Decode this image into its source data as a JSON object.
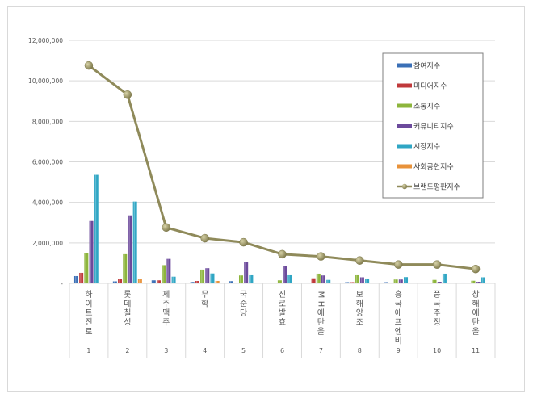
{
  "chart_data": {
    "type": "bar",
    "title": "",
    "xlabel": "",
    "ylabel": "",
    "ylim": [
      0,
      12000000
    ],
    "yticks": [
      "-",
      "2,000,000",
      "4,000,000",
      "6,000,000",
      "8,000,000",
      "10,000,000",
      "12,000,000"
    ],
    "grid": true,
    "legend_position": "right-top-inside",
    "categories": [
      "하이트진로",
      "롯데칠성",
      "제주맥주",
      "무학",
      "국순당",
      "진로발효",
      "MH에탄올",
      "보해양조",
      "흥국에프엔비",
      "풍국주정",
      "창해에탄올"
    ],
    "category_numbers": [
      "1",
      "2",
      "3",
      "4",
      "5",
      "6",
      "7",
      "8",
      "9",
      "10",
      "11"
    ],
    "series": [
      {
        "name": "참여지수",
        "type": "bar",
        "color": "#3a6fb6",
        "values": [
          360000,
          100000,
          150000,
          70000,
          110000,
          30000,
          40000,
          60000,
          60000,
          30000,
          40000
        ]
      },
      {
        "name": "미디어지수",
        "type": "bar",
        "color": "#c0393b",
        "values": [
          520000,
          200000,
          150000,
          120000,
          40000,
          30000,
          250000,
          60000,
          40000,
          30000,
          30000
        ]
      },
      {
        "name": "소통지수",
        "type": "bar",
        "color": "#8db53c",
        "values": [
          1480000,
          1440000,
          900000,
          680000,
          390000,
          150000,
          480000,
          400000,
          190000,
          170000,
          130000
        ]
      },
      {
        "name": "커뮤니티지수",
        "type": "bar",
        "color": "#6c4a9c",
        "values": [
          3080000,
          3360000,
          1210000,
          750000,
          1040000,
          840000,
          390000,
          300000,
          190000,
          80000,
          80000
        ]
      },
      {
        "name": "시장지수",
        "type": "bar",
        "color": "#2fa6c4",
        "values": [
          5360000,
          4040000,
          330000,
          490000,
          400000,
          400000,
          170000,
          240000,
          310000,
          480000,
          300000
        ]
      },
      {
        "name": "사회공헌지수",
        "type": "bar",
        "color": "#e8923a",
        "values": [
          20000,
          200000,
          20000,
          120000,
          20000,
          10000,
          20000,
          20000,
          10000,
          10000,
          10000
        ]
      },
      {
        "name": "브랜드평판지수",
        "type": "line",
        "color": "#8f8a5a",
        "values": [
          10760000,
          9320000,
          2760000,
          2230000,
          2030000,
          1440000,
          1330000,
          1130000,
          930000,
          930000,
          710000
        ]
      }
    ]
  }
}
